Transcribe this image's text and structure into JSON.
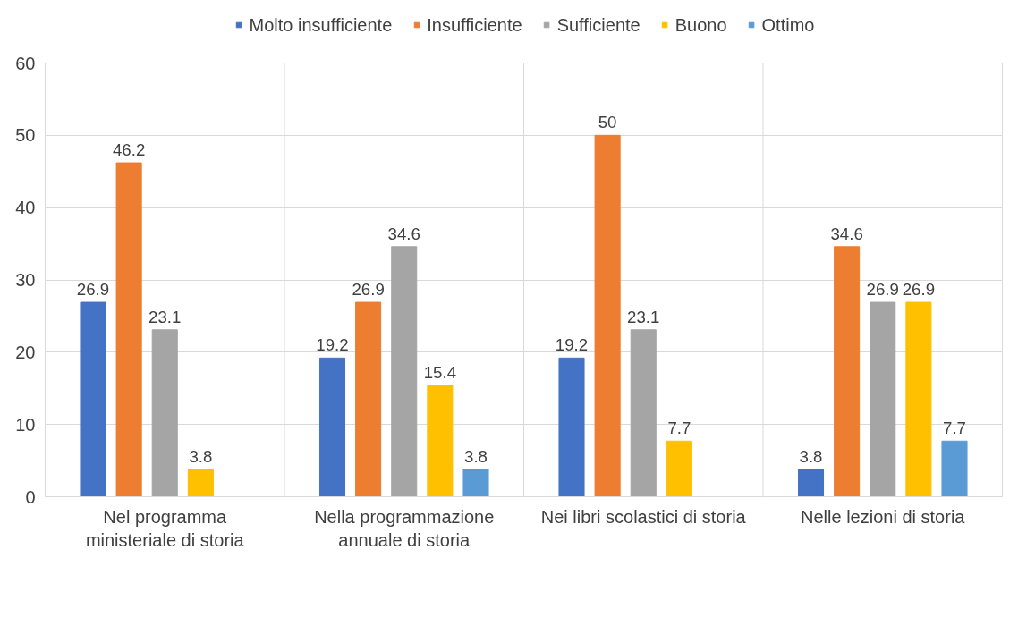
{
  "chart_data": {
    "type": "bar",
    "categories": [
      "Nel programma\nministeriale di storia",
      "Nella programmazione\nannuale di storia",
      "Nei libri scolastici di storia",
      "Nelle lezioni di storia"
    ],
    "series": [
      {
        "name": "Molto insufficiente",
        "color": "#4472c4",
        "values": [
          26.9,
          19.2,
          19.2,
          3.8
        ]
      },
      {
        "name": "Insufficiente",
        "color": "#ed7d31",
        "values": [
          46.2,
          26.9,
          50,
          34.6
        ]
      },
      {
        "name": "Sufficiente",
        "color": "#a5a5a5",
        "values": [
          23.1,
          34.6,
          23.1,
          26.9
        ]
      },
      {
        "name": "Buono",
        "color": "#ffc000",
        "values": [
          3.8,
          15.4,
          7.7,
          26.9
        ]
      },
      {
        "name": "Ottimo",
        "color": "#5b9bd5",
        "values": [
          null,
          3.8,
          null,
          7.7
        ]
      }
    ],
    "ylim": [
      0,
      60
    ],
    "yticks": [
      0,
      10,
      20,
      30,
      40,
      50,
      60
    ],
    "grid": true,
    "legend": "top",
    "data_labels": true
  }
}
